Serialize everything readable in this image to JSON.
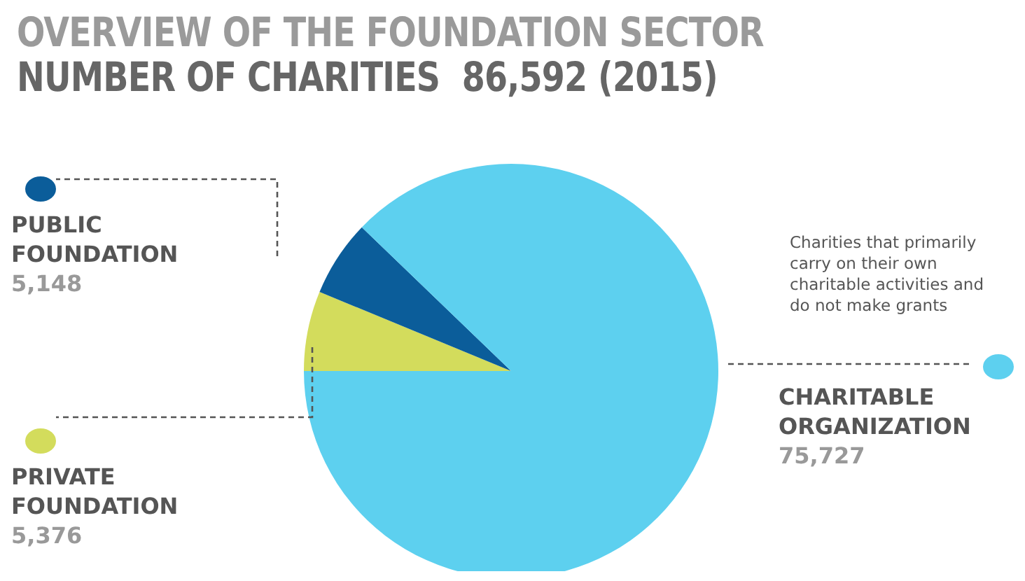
{
  "chart_data": {
    "type": "pie",
    "title": "OVERVIEW OF THE FOUNDATION SECTOR",
    "subtitle": "NUMBER OF CHARITIES  86,592 (2015)",
    "categories": [
      "PRIVATE FOUNDATION",
      "PUBLIC FOUNDATION",
      "CHARITABLE ORGANIZATION"
    ],
    "values": [
      5376,
      5148,
      75727
    ],
    "colors": [
      "#d3dc5c",
      "#0b5d9a",
      "#5dd0ef"
    ],
    "value_labels": [
      "5,376",
      "5,148",
      "75,727"
    ],
    "legend": "left",
    "annotations": [
      "Charities that primarily carry on their own charitable activities and do not make grants"
    ]
  }
}
